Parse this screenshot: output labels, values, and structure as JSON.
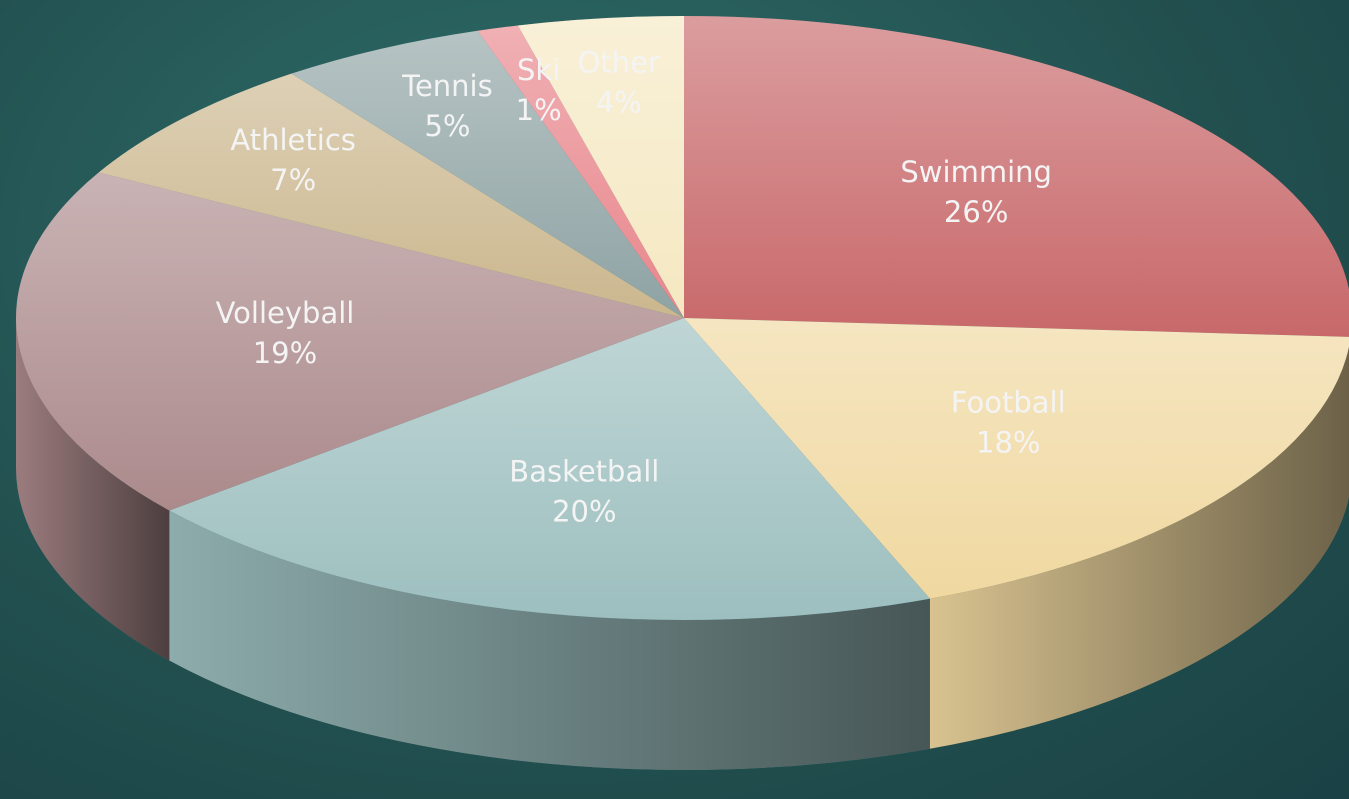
{
  "chart_data": {
    "type": "pie",
    "categories": [
      "Swimming",
      "Football",
      "Basketball",
      "Volleyball",
      "Athletics",
      "Tennis",
      "Ski",
      "Other"
    ],
    "values": [
      26,
      18,
      20,
      19,
      7,
      5,
      1,
      4
    ],
    "value_labels": [
      "26%",
      "18%",
      "20%",
      "19%",
      "7%",
      "5%",
      "1%",
      "4%"
    ],
    "colors": [
      "#c8686a",
      "#f0d8a0",
      "#9dbfbf",
      "#ac8a8c",
      "#cbb78e",
      "#8fa3a4",
      "#e8868c",
      "#f5e8c2"
    ]
  }
}
